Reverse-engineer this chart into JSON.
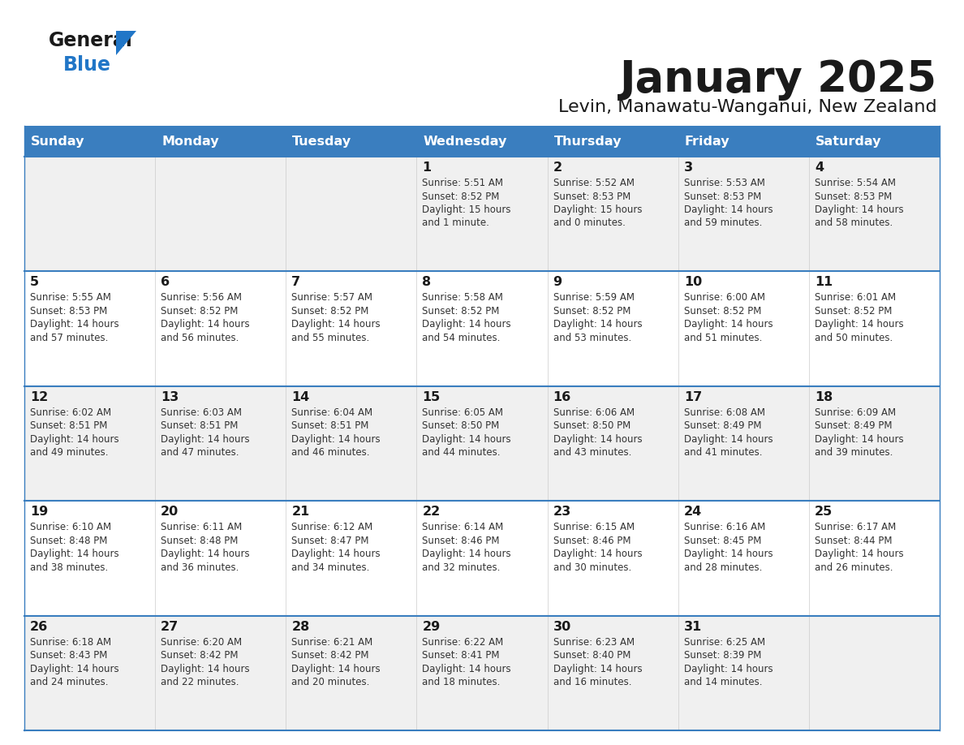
{
  "title": "January 2025",
  "subtitle": "Levin, Manawatu-Wanganui, New Zealand",
  "days_of_week": [
    "Sunday",
    "Monday",
    "Tuesday",
    "Wednesday",
    "Thursday",
    "Friday",
    "Saturday"
  ],
  "header_bg": "#3a7ebf",
  "header_text": "#ffffff",
  "row_bg_odd": "#f0f0f0",
  "row_bg_even": "#ffffff",
  "cell_border": "#3a7ebf",
  "title_color": "#1a1a1a",
  "subtitle_color": "#1a1a1a",
  "day_number_color": "#1a1a1a",
  "cell_text_color": "#333333",
  "logo_color1": "#1a1a1a",
  "logo_color2": "#2176c7",
  "logo_triangle": "#2176c7",
  "calendar": [
    [
      {
        "day": null,
        "sunrise": null,
        "sunset": null,
        "daylight": null
      },
      {
        "day": null,
        "sunrise": null,
        "sunset": null,
        "daylight": null
      },
      {
        "day": null,
        "sunrise": null,
        "sunset": null,
        "daylight": null
      },
      {
        "day": 1,
        "sunrise": "5:51 AM",
        "sunset": "8:52 PM",
        "daylight": "15 hours and 1 minute."
      },
      {
        "day": 2,
        "sunrise": "5:52 AM",
        "sunset": "8:53 PM",
        "daylight": "15 hours and 0 minutes."
      },
      {
        "day": 3,
        "sunrise": "5:53 AM",
        "sunset": "8:53 PM",
        "daylight": "14 hours and 59 minutes."
      },
      {
        "day": 4,
        "sunrise": "5:54 AM",
        "sunset": "8:53 PM",
        "daylight": "14 hours and 58 minutes."
      }
    ],
    [
      {
        "day": 5,
        "sunrise": "5:55 AM",
        "sunset": "8:53 PM",
        "daylight": "14 hours and 57 minutes."
      },
      {
        "day": 6,
        "sunrise": "5:56 AM",
        "sunset": "8:52 PM",
        "daylight": "14 hours and 56 minutes."
      },
      {
        "day": 7,
        "sunrise": "5:57 AM",
        "sunset": "8:52 PM",
        "daylight": "14 hours and 55 minutes."
      },
      {
        "day": 8,
        "sunrise": "5:58 AM",
        "sunset": "8:52 PM",
        "daylight": "14 hours and 54 minutes."
      },
      {
        "day": 9,
        "sunrise": "5:59 AM",
        "sunset": "8:52 PM",
        "daylight": "14 hours and 53 minutes."
      },
      {
        "day": 10,
        "sunrise": "6:00 AM",
        "sunset": "8:52 PM",
        "daylight": "14 hours and 51 minutes."
      },
      {
        "day": 11,
        "sunrise": "6:01 AM",
        "sunset": "8:52 PM",
        "daylight": "14 hours and 50 minutes."
      }
    ],
    [
      {
        "day": 12,
        "sunrise": "6:02 AM",
        "sunset": "8:51 PM",
        "daylight": "14 hours and 49 minutes."
      },
      {
        "day": 13,
        "sunrise": "6:03 AM",
        "sunset": "8:51 PM",
        "daylight": "14 hours and 47 minutes."
      },
      {
        "day": 14,
        "sunrise": "6:04 AM",
        "sunset": "8:51 PM",
        "daylight": "14 hours and 46 minutes."
      },
      {
        "day": 15,
        "sunrise": "6:05 AM",
        "sunset": "8:50 PM",
        "daylight": "14 hours and 44 minutes."
      },
      {
        "day": 16,
        "sunrise": "6:06 AM",
        "sunset": "8:50 PM",
        "daylight": "14 hours and 43 minutes."
      },
      {
        "day": 17,
        "sunrise": "6:08 AM",
        "sunset": "8:49 PM",
        "daylight": "14 hours and 41 minutes."
      },
      {
        "day": 18,
        "sunrise": "6:09 AM",
        "sunset": "8:49 PM",
        "daylight": "14 hours and 39 minutes."
      }
    ],
    [
      {
        "day": 19,
        "sunrise": "6:10 AM",
        "sunset": "8:48 PM",
        "daylight": "14 hours and 38 minutes."
      },
      {
        "day": 20,
        "sunrise": "6:11 AM",
        "sunset": "8:48 PM",
        "daylight": "14 hours and 36 minutes."
      },
      {
        "day": 21,
        "sunrise": "6:12 AM",
        "sunset": "8:47 PM",
        "daylight": "14 hours and 34 minutes."
      },
      {
        "day": 22,
        "sunrise": "6:14 AM",
        "sunset": "8:46 PM",
        "daylight": "14 hours and 32 minutes."
      },
      {
        "day": 23,
        "sunrise": "6:15 AM",
        "sunset": "8:46 PM",
        "daylight": "14 hours and 30 minutes."
      },
      {
        "day": 24,
        "sunrise": "6:16 AM",
        "sunset": "8:45 PM",
        "daylight": "14 hours and 28 minutes."
      },
      {
        "day": 25,
        "sunrise": "6:17 AM",
        "sunset": "8:44 PM",
        "daylight": "14 hours and 26 minutes."
      }
    ],
    [
      {
        "day": 26,
        "sunrise": "6:18 AM",
        "sunset": "8:43 PM",
        "daylight": "14 hours and 24 minutes."
      },
      {
        "day": 27,
        "sunrise": "6:20 AM",
        "sunset": "8:42 PM",
        "daylight": "14 hours and 22 minutes."
      },
      {
        "day": 28,
        "sunrise": "6:21 AM",
        "sunset": "8:42 PM",
        "daylight": "14 hours and 20 minutes."
      },
      {
        "day": 29,
        "sunrise": "6:22 AM",
        "sunset": "8:41 PM",
        "daylight": "14 hours and 18 minutes."
      },
      {
        "day": 30,
        "sunrise": "6:23 AM",
        "sunset": "8:40 PM",
        "daylight": "14 hours and 16 minutes."
      },
      {
        "day": 31,
        "sunrise": "6:25 AM",
        "sunset": "8:39 PM",
        "daylight": "14 hours and 14 minutes."
      },
      {
        "day": null,
        "sunrise": null,
        "sunset": null,
        "daylight": null
      }
    ]
  ]
}
